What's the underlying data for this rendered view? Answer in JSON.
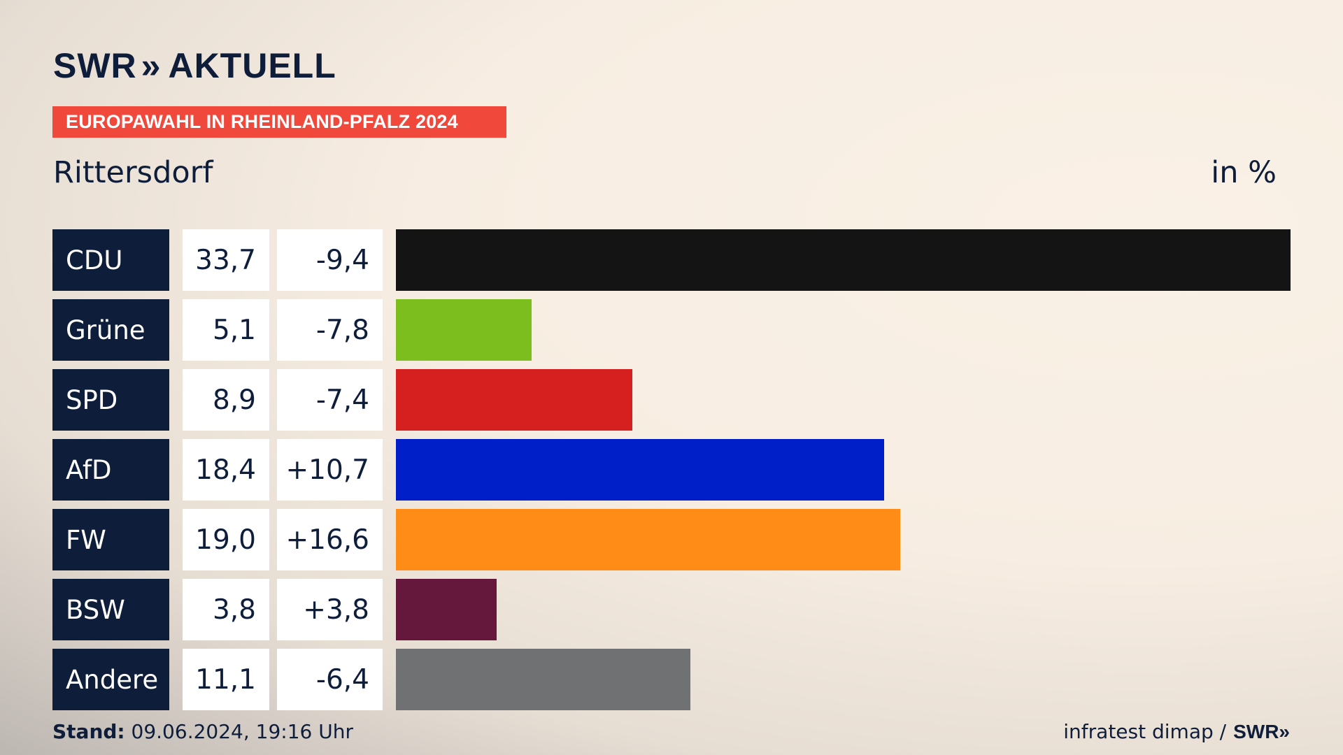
{
  "header": {
    "brand": "SWR",
    "brand_chevrons": "»",
    "brand_suffix": "AKTUELL",
    "banner": "EUROPAWAHL IN RHEINLAND-PFALZ 2024",
    "place": "Rittersdorf",
    "unit": "in %"
  },
  "chart_data": {
    "type": "bar",
    "title": "Rittersdorf",
    "ylabel": "in %",
    "categories": [
      "CDU",
      "Grüne",
      "SPD",
      "AfD",
      "FW",
      "BSW",
      "Andere"
    ],
    "values": [
      33.7,
      5.1,
      8.9,
      18.4,
      19.0,
      3.8,
      11.1
    ],
    "value_labels": [
      "33,7",
      "5,1",
      "8,9",
      "18,4",
      "19,0",
      "3,8",
      "11,1"
    ],
    "diff_labels": [
      "-9,4",
      "-7,8",
      "-7,4",
      "+10,7",
      "+16,6",
      "+3,8",
      "-6,4"
    ],
    "colors": [
      "#141414",
      "#7cbe1e",
      "#d61f1f",
      "#001fc8",
      "#ff8c17",
      "#65183c",
      "#707173"
    ],
    "xlim": [
      0,
      33.7
    ]
  },
  "footer": {
    "stand_label": "Stand:",
    "stand_value": "09.06.2024, 19:16 Uhr",
    "source": "infratest dimap /",
    "source_brand": "SWR»"
  }
}
